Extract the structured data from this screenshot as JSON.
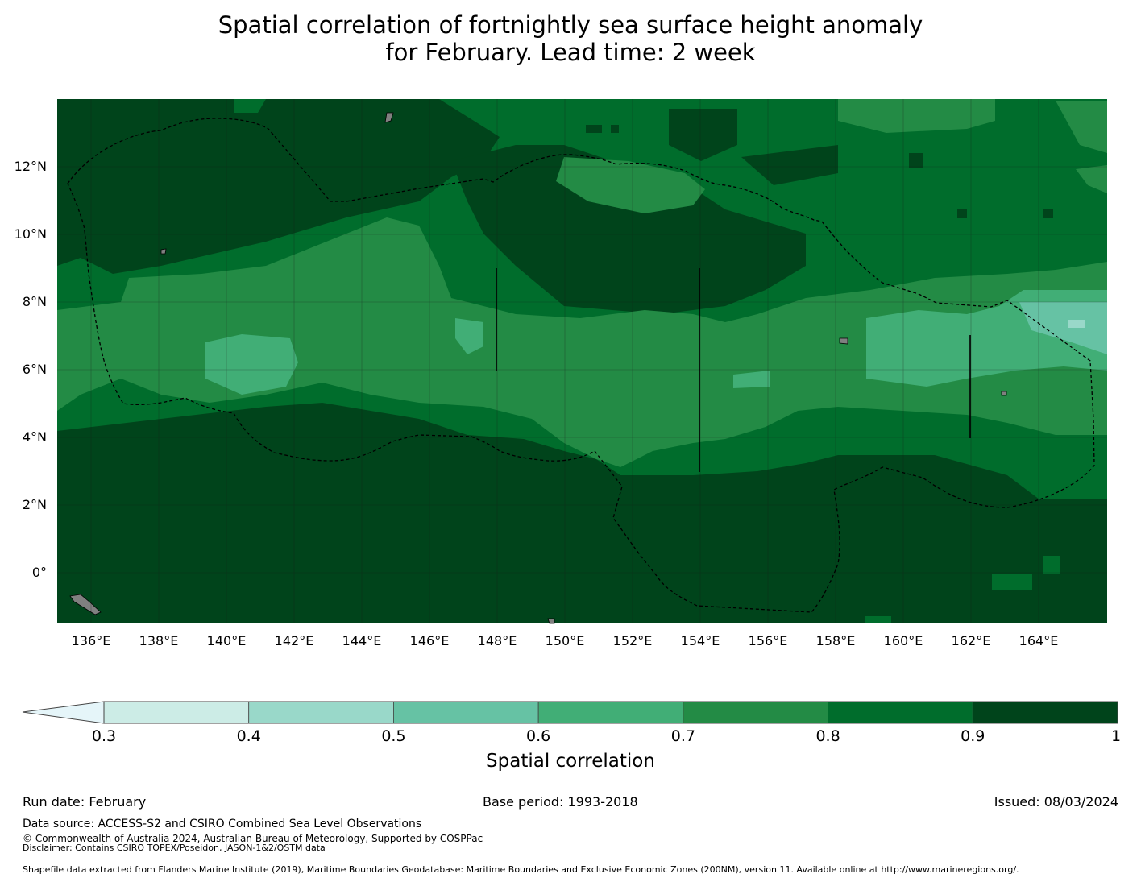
{
  "title": {
    "line1": "Spatial correlation of fortnightly sea surface height anomaly",
    "line2": "for February. Lead time: 2 week"
  },
  "map": {
    "lon_labels": [
      "136°E",
      "138°E",
      "140°E",
      "142°E",
      "144°E",
      "146°E",
      "148°E",
      "150°E",
      "152°E",
      "154°E",
      "156°E",
      "158°E",
      "160°E",
      "162°E",
      "164°E"
    ],
    "lat_labels": [
      "12°N",
      "10°N",
      "8°N",
      "6°N",
      "4°N",
      "2°N",
      "0°"
    ],
    "colors": {
      "land": "#808080",
      "grid": "#1a1a1a"
    }
  },
  "colorbar": {
    "title": "Spatial correlation",
    "ticks": [
      "0.3",
      "0.4",
      "0.5",
      "0.6",
      "0.7",
      "0.8",
      "0.9",
      "1"
    ],
    "under_color": "#e5f5f9",
    "colors": [
      "#ccece6",
      "#99d8c9",
      "#66c2a4",
      "#41ae76",
      "#238b45",
      "#006d2c",
      "#00441b"
    ]
  },
  "footer": {
    "run_date": "Run date: February",
    "base_period": "Base period: 1993-2018",
    "issued": "Issued: 08/03/2024",
    "data_source": "Data source: ACCESS-S2 and CSIRO Combined Sea Level Observations",
    "copyright": "© Commonwealth of Australia 2024, Australian Bureau of Meteorology, Supported by COSPPac",
    "disclaimer": "Disclaimer: Contains CSIRO TOPEX/Poseidon, JASON-1&2/OSTM data",
    "shapefile": "Shapefile data extracted from Flanders Marine Institute (2019), Maritime Boundaries Geodatabase: Maritime Boundaries and Exclusive Economic Zones (200NM), version 11. Available online at http://www.marineregions.org/."
  }
}
